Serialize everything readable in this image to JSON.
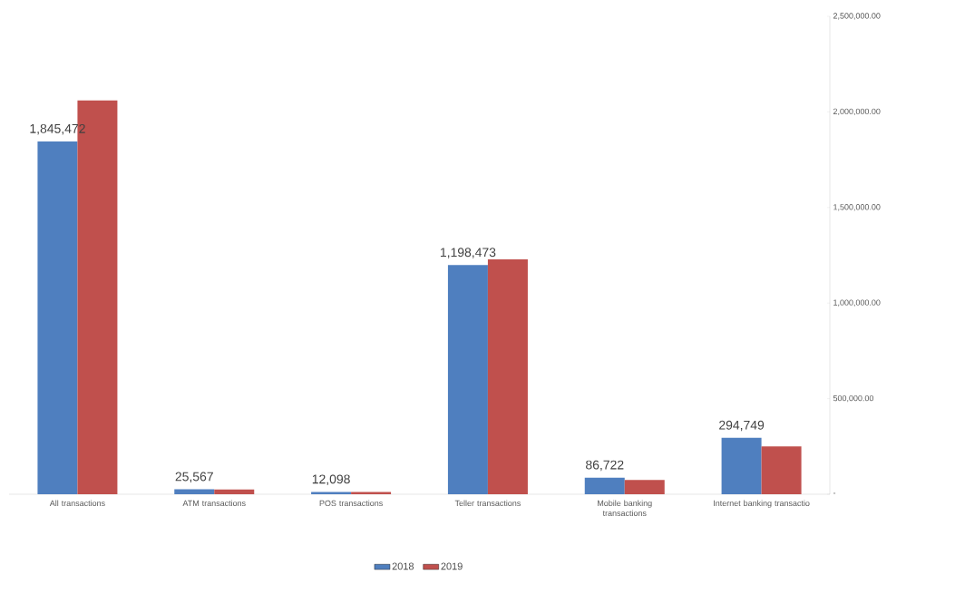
{
  "chart_data": {
    "type": "bar",
    "categories": [
      "All transactions",
      "ATM transactions",
      "POS transactions",
      "Teller transactions",
      "Mobile banking transactions",
      "Internet banking transactio"
    ],
    "series": [
      {
        "name": "2018",
        "color": "#4f7fbf",
        "values": [
          1845472,
          25567,
          12098,
          1198473,
          86722,
          294749
        ],
        "value_labels": [
          "1,845,472",
          "25,567",
          "12,098",
          "1,198,473",
          "86,722",
          "294,749"
        ]
      },
      {
        "name": "2019",
        "color": "#c0504d",
        "values": [
          2060000,
          25000,
          12000,
          1229000,
          75000,
          250000
        ]
      }
    ],
    "ylim": [
      0,
      2500000
    ],
    "yticks": [
      {
        "value": 0,
        "label": "-"
      },
      {
        "value": 500000,
        "label": "500,000.00"
      },
      {
        "value": 1000000,
        "label": "1,000,000.00"
      },
      {
        "value": 1500000,
        "label": "1,500,000.00"
      },
      {
        "value": 2000000,
        "label": "2,000,000.00"
      },
      {
        "value": 2500000,
        "label": "2,500,000.00"
      }
    ],
    "grid": false,
    "legend": "bottom"
  }
}
